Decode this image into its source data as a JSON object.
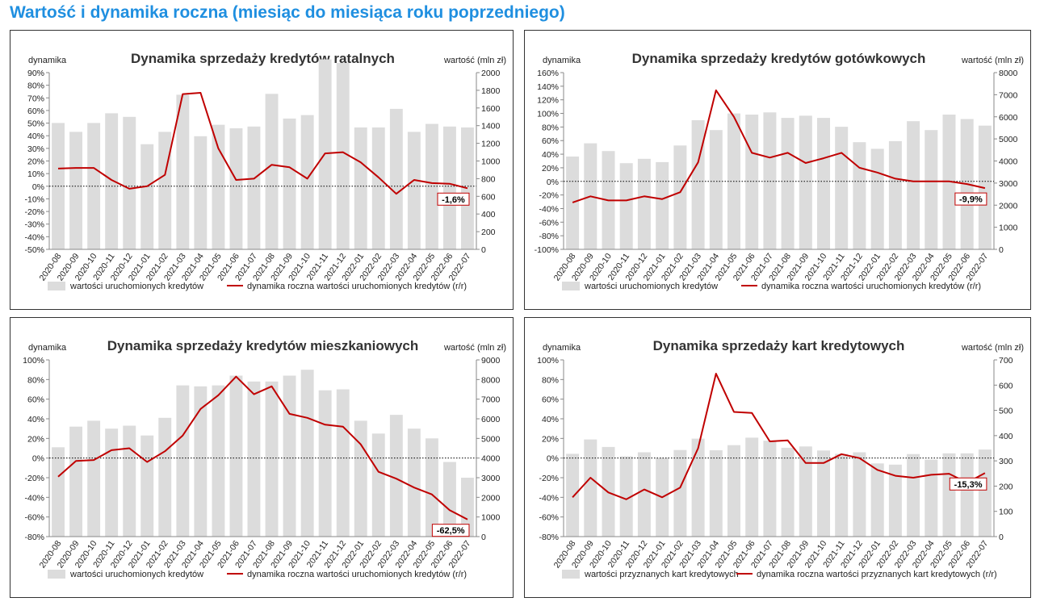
{
  "page_title": "Wartość i dynamika roczna (miesiąc do miesiąca roku poprzedniego)",
  "colors": {
    "bar": "#dcdcdc",
    "line": "#c00000",
    "title_blue": "#1f8fe0",
    "text": "#222222"
  },
  "chart_data": [
    {
      "type": "bar+line",
      "title": "Dynamika sprzedaży kredytów ratalnych",
      "ylabel_left": "dynamika",
      "ylabel_right": "wartość (mln zł)",
      "categories": [
        "2020-08",
        "2020-09",
        "2020-10",
        "2020-11",
        "2020-12",
        "2021-01",
        "2021-02",
        "2021-03",
        "2021-04",
        "2021-05",
        "2021-06",
        "2021-07",
        "2021-08",
        "2021-09",
        "2021-10",
        "2021-11",
        "2021-12",
        "2022-01",
        "2022-02",
        "2022-03",
        "2022-04",
        "2022-05",
        "2022-06",
        "2022-07"
      ],
      "left_axis": {
        "min": -50,
        "max": 90,
        "step": 10,
        "suffix": "%"
      },
      "right_axis": {
        "min": 0,
        "max": 2000,
        "step": 200
      },
      "bars": {
        "name": "wartości uruchomionych kredytów",
        "values": [
          1430,
          1330,
          1430,
          1540,
          1500,
          1190,
          1330,
          1750,
          1280,
          1410,
          1370,
          1390,
          1760,
          1480,
          1520,
          2150,
          2110,
          1380,
          1380,
          1590,
          1330,
          1420,
          1390,
          1380
        ]
      },
      "line": {
        "name": "dynamika roczna wartości uruchomionych kredytów (r/r)",
        "values": [
          14,
          14.5,
          14.5,
          5,
          -2,
          0,
          9,
          73,
          74,
          30,
          5,
          6,
          17,
          15,
          6,
          26,
          27,
          19,
          7,
          -6,
          5,
          2.5,
          2,
          -1.6
        ]
      },
      "callout": "-1,6%"
    },
    {
      "type": "bar+line",
      "title": "Dynamika sprzedaży kredytów gotówkowych",
      "ylabel_left": "dynamika",
      "ylabel_right": "wartość (mln zł)",
      "categories": [
        "2020-08",
        "2020-09",
        "2020-10",
        "2020-11",
        "2020-12",
        "2021-01",
        "2021-02",
        "2021-03",
        "2021-04",
        "2021-05",
        "2021-06",
        "2021-07",
        "2021-08",
        "2021-09",
        "2021-10",
        "2021-11",
        "2021-12",
        "2022-01",
        "2022-02",
        "2022-03",
        "2022-04",
        "2022-05",
        "2022-06",
        "2022-07"
      ],
      "left_axis": {
        "min": -100,
        "max": 160,
        "step": 20,
        "suffix": "%"
      },
      "right_axis": {
        "min": 0,
        "max": 8000,
        "step": 1000
      },
      "bars": {
        "name": "wartości uruchomionych kredytów",
        "values": [
          4200,
          4800,
          4450,
          3900,
          4100,
          3950,
          4700,
          5850,
          5400,
          6150,
          6100,
          6200,
          5950,
          6050,
          5950,
          5550,
          4850,
          4550,
          4900,
          5800,
          5400,
          6100,
          5900,
          5600
        ]
      },
      "line": {
        "name": "dynamika roczna wartości uruchomionych kredytów (r/r)",
        "values": [
          -31,
          -22,
          -28,
          -28,
          -22,
          -26,
          -16,
          28,
          134,
          95,
          42,
          35,
          42,
          27,
          34,
          42,
          20,
          13,
          4,
          0,
          0,
          0,
          -4,
          -9.9
        ]
      },
      "callout": "-9,9%"
    },
    {
      "type": "bar+line",
      "title": "Dynamika sprzedaży kredytów mieszkaniowych",
      "ylabel_left": "dynamika",
      "ylabel_right": "wartość (mln zł)",
      "categories": [
        "2020-08",
        "2020-09",
        "2020-10",
        "2020-11",
        "2020-12",
        "2021-01",
        "2021-02",
        "2021-03",
        "2021-04",
        "2021-05",
        "2021-06",
        "2021-07",
        "2021-08",
        "2021-09",
        "2021-10",
        "2021-11",
        "2021-12",
        "2022-01",
        "2022-02",
        "2022-03",
        "2022-04",
        "2022-05",
        "2022-06",
        "2022-07"
      ],
      "left_axis": {
        "min": -80,
        "max": 100,
        "step": 20,
        "suffix": "%"
      },
      "right_axis": {
        "min": 0,
        "max": 9000,
        "step": 1000
      },
      "bars": {
        "name": "wartości uruchomionych kredytów",
        "values": [
          4550,
          5600,
          5900,
          5500,
          5650,
          5150,
          6050,
          7700,
          7650,
          7700,
          8200,
          7900,
          7900,
          8200,
          8500,
          7450,
          7500,
          5900,
          5250,
          6200,
          5500,
          5000,
          3800,
          3000
        ]
      },
      "line": {
        "name": "dynamika roczna wartości uruchomionych kredytów (r/r)",
        "values": [
          -19,
          -3,
          -2,
          8,
          10,
          -4,
          7,
          23,
          50,
          64,
          83,
          65,
          73,
          45,
          41,
          34,
          32,
          14,
          -14,
          -21,
          -30,
          -37,
          -53,
          -62.5
        ]
      },
      "callout": "-62,5%"
    },
    {
      "type": "bar+line",
      "title": "Dynamika sprzedaży kart kredytowych",
      "ylabel_left": "dynamika",
      "ylabel_right": "wartość (mln zł)",
      "categories": [
        "2020-08",
        "2020-09",
        "2020-10",
        "2020-11",
        "2020-12",
        "2021-01",
        "2021-02",
        "2021-03",
        "2021-04",
        "2021-05",
        "2021-06",
        "2021-07",
        "2021-08",
        "2021-09",
        "2021-10",
        "2021-11",
        "2021-12",
        "2022-01",
        "2022-02",
        "2022-03",
        "2022-04",
        "2022-05",
        "2022-06",
        "2022-07"
      ],
      "left_axis": {
        "min": -80,
        "max": 100,
        "step": 20,
        "suffix": "%"
      },
      "right_axis": {
        "min": 0,
        "max": 700,
        "step": 100
      },
      "bars": {
        "name": "wartości przyznanych kart kredytowych",
        "values": [
          328,
          385,
          355,
          318,
          334,
          312,
          343,
          388,
          342,
          362,
          392,
          380,
          352,
          357,
          341,
          328,
          334,
          290,
          285,
          327,
          305,
          330,
          330,
          345
        ]
      },
      "line": {
        "name": "dynamika roczna wartości przyznanych kart kredytowych (r/r)",
        "values": [
          -40,
          -20,
          -35,
          -42,
          -32,
          -40,
          -30,
          10,
          86,
          47,
          46,
          17,
          18,
          -5,
          -5,
          4,
          0,
          -12,
          -18,
          -20,
          -17,
          -16,
          -25,
          -15.3
        ]
      },
      "callout": "-15,3%"
    }
  ]
}
